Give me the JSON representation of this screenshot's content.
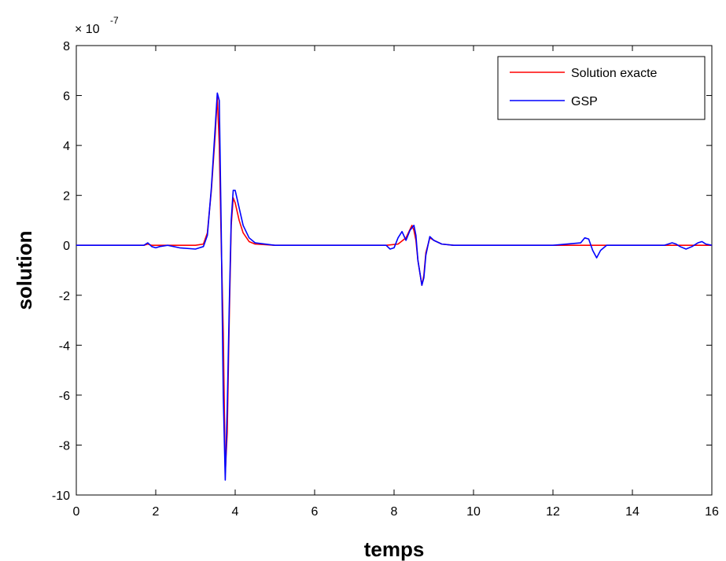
{
  "chart_data": {
    "type": "line",
    "xlabel": "temps",
    "ylabel": "solution",
    "exponent_base": "× 10",
    "exponent_power": "-7",
    "xlim": [
      0,
      16
    ],
    "ylim": [
      -10,
      8
    ],
    "x_ticks": [
      0,
      2,
      4,
      6,
      8,
      10,
      12,
      14,
      16
    ],
    "y_ticks": [
      -10,
      -8,
      -6,
      -4,
      -2,
      0,
      2,
      4,
      6,
      8
    ],
    "grid": false,
    "legend_position": "top-right",
    "series": [
      {
        "name": "Solution exacte",
        "color": "#ff0000",
        "points": [
          [
            0,
            0
          ],
          [
            1.7,
            0
          ],
          [
            1.8,
            0.05
          ],
          [
            1.9,
            0
          ],
          [
            2.2,
            0
          ],
          [
            2.6,
            0
          ],
          [
            3.0,
            0
          ],
          [
            3.2,
            0.05
          ],
          [
            3.3,
            0.5
          ],
          [
            3.4,
            2.2
          ],
          [
            3.5,
            4.5
          ],
          [
            3.55,
            6.0
          ],
          [
            3.6,
            4.0
          ],
          [
            3.65,
            0
          ],
          [
            3.7,
            -3.5
          ],
          [
            3.75,
            -9.1
          ],
          [
            3.8,
            -7.5
          ],
          [
            3.85,
            -3.0
          ],
          [
            3.9,
            0.8
          ],
          [
            3.95,
            1.9
          ],
          [
            4.0,
            1.7
          ],
          [
            4.1,
            1.0
          ],
          [
            4.2,
            0.5
          ],
          [
            4.35,
            0.15
          ],
          [
            4.5,
            0.05
          ],
          [
            5.0,
            0
          ],
          [
            6.0,
            0
          ],
          [
            7.0,
            0
          ],
          [
            7.8,
            0
          ],
          [
            8.1,
            0.05
          ],
          [
            8.3,
            0.3
          ],
          [
            8.45,
            0.8
          ],
          [
            8.5,
            0.6
          ],
          [
            8.55,
            0.2
          ],
          [
            8.6,
            -0.6
          ],
          [
            8.7,
            -1.6
          ],
          [
            8.75,
            -1.2
          ],
          [
            8.8,
            -0.3
          ],
          [
            8.9,
            0.3
          ],
          [
            9.0,
            0.2
          ],
          [
            9.2,
            0.05
          ],
          [
            9.5,
            0
          ],
          [
            12.0,
            0
          ],
          [
            16.0,
            0
          ]
        ]
      },
      {
        "name": "GSP",
        "color": "#0000ff",
        "points": [
          [
            0,
            0
          ],
          [
            1.7,
            0
          ],
          [
            1.8,
            0.1
          ],
          [
            1.9,
            -0.05
          ],
          [
            2.0,
            -0.1
          ],
          [
            2.1,
            -0.05
          ],
          [
            2.3,
            0
          ],
          [
            2.6,
            -0.1
          ],
          [
            3.0,
            -0.15
          ],
          [
            3.2,
            -0.05
          ],
          [
            3.3,
            0.4
          ],
          [
            3.4,
            2.3
          ],
          [
            3.5,
            4.8
          ],
          [
            3.55,
            6.1
          ],
          [
            3.6,
            5.8
          ],
          [
            3.65,
            0.5
          ],
          [
            3.7,
            -6.0
          ],
          [
            3.75,
            -9.4
          ],
          [
            3.8,
            -6.5
          ],
          [
            3.85,
            -2.5
          ],
          [
            3.9,
            1.0
          ],
          [
            3.95,
            2.2
          ],
          [
            4.0,
            2.2
          ],
          [
            4.1,
            1.5
          ],
          [
            4.2,
            0.8
          ],
          [
            4.35,
            0.3
          ],
          [
            4.5,
            0.1
          ],
          [
            5.0,
            0
          ],
          [
            6.0,
            0
          ],
          [
            7.0,
            0
          ],
          [
            7.8,
            0
          ],
          [
            7.9,
            -0.15
          ],
          [
            8.0,
            -0.1
          ],
          [
            8.1,
            0.3
          ],
          [
            8.2,
            0.55
          ],
          [
            8.3,
            0.2
          ],
          [
            8.4,
            0.6
          ],
          [
            8.5,
            0.8
          ],
          [
            8.55,
            0.4
          ],
          [
            8.6,
            -0.6
          ],
          [
            8.7,
            -1.6
          ],
          [
            8.75,
            -1.3
          ],
          [
            8.8,
            -0.4
          ],
          [
            8.9,
            0.35
          ],
          [
            9.0,
            0.2
          ],
          [
            9.2,
            0.05
          ],
          [
            9.5,
            0
          ],
          [
            12.0,
            0
          ],
          [
            12.7,
            0.1
          ],
          [
            12.8,
            0.3
          ],
          [
            12.9,
            0.25
          ],
          [
            13.0,
            -0.2
          ],
          [
            13.1,
            -0.5
          ],
          [
            13.2,
            -0.2
          ],
          [
            13.35,
            0
          ],
          [
            14.8,
            0
          ],
          [
            15.0,
            0.1
          ],
          [
            15.1,
            0.05
          ],
          [
            15.2,
            -0.05
          ],
          [
            15.35,
            -0.15
          ],
          [
            15.5,
            -0.05
          ],
          [
            15.65,
            0.1
          ],
          [
            15.75,
            0.15
          ],
          [
            15.85,
            0.05
          ],
          [
            16.0,
            0
          ]
        ]
      }
    ]
  }
}
